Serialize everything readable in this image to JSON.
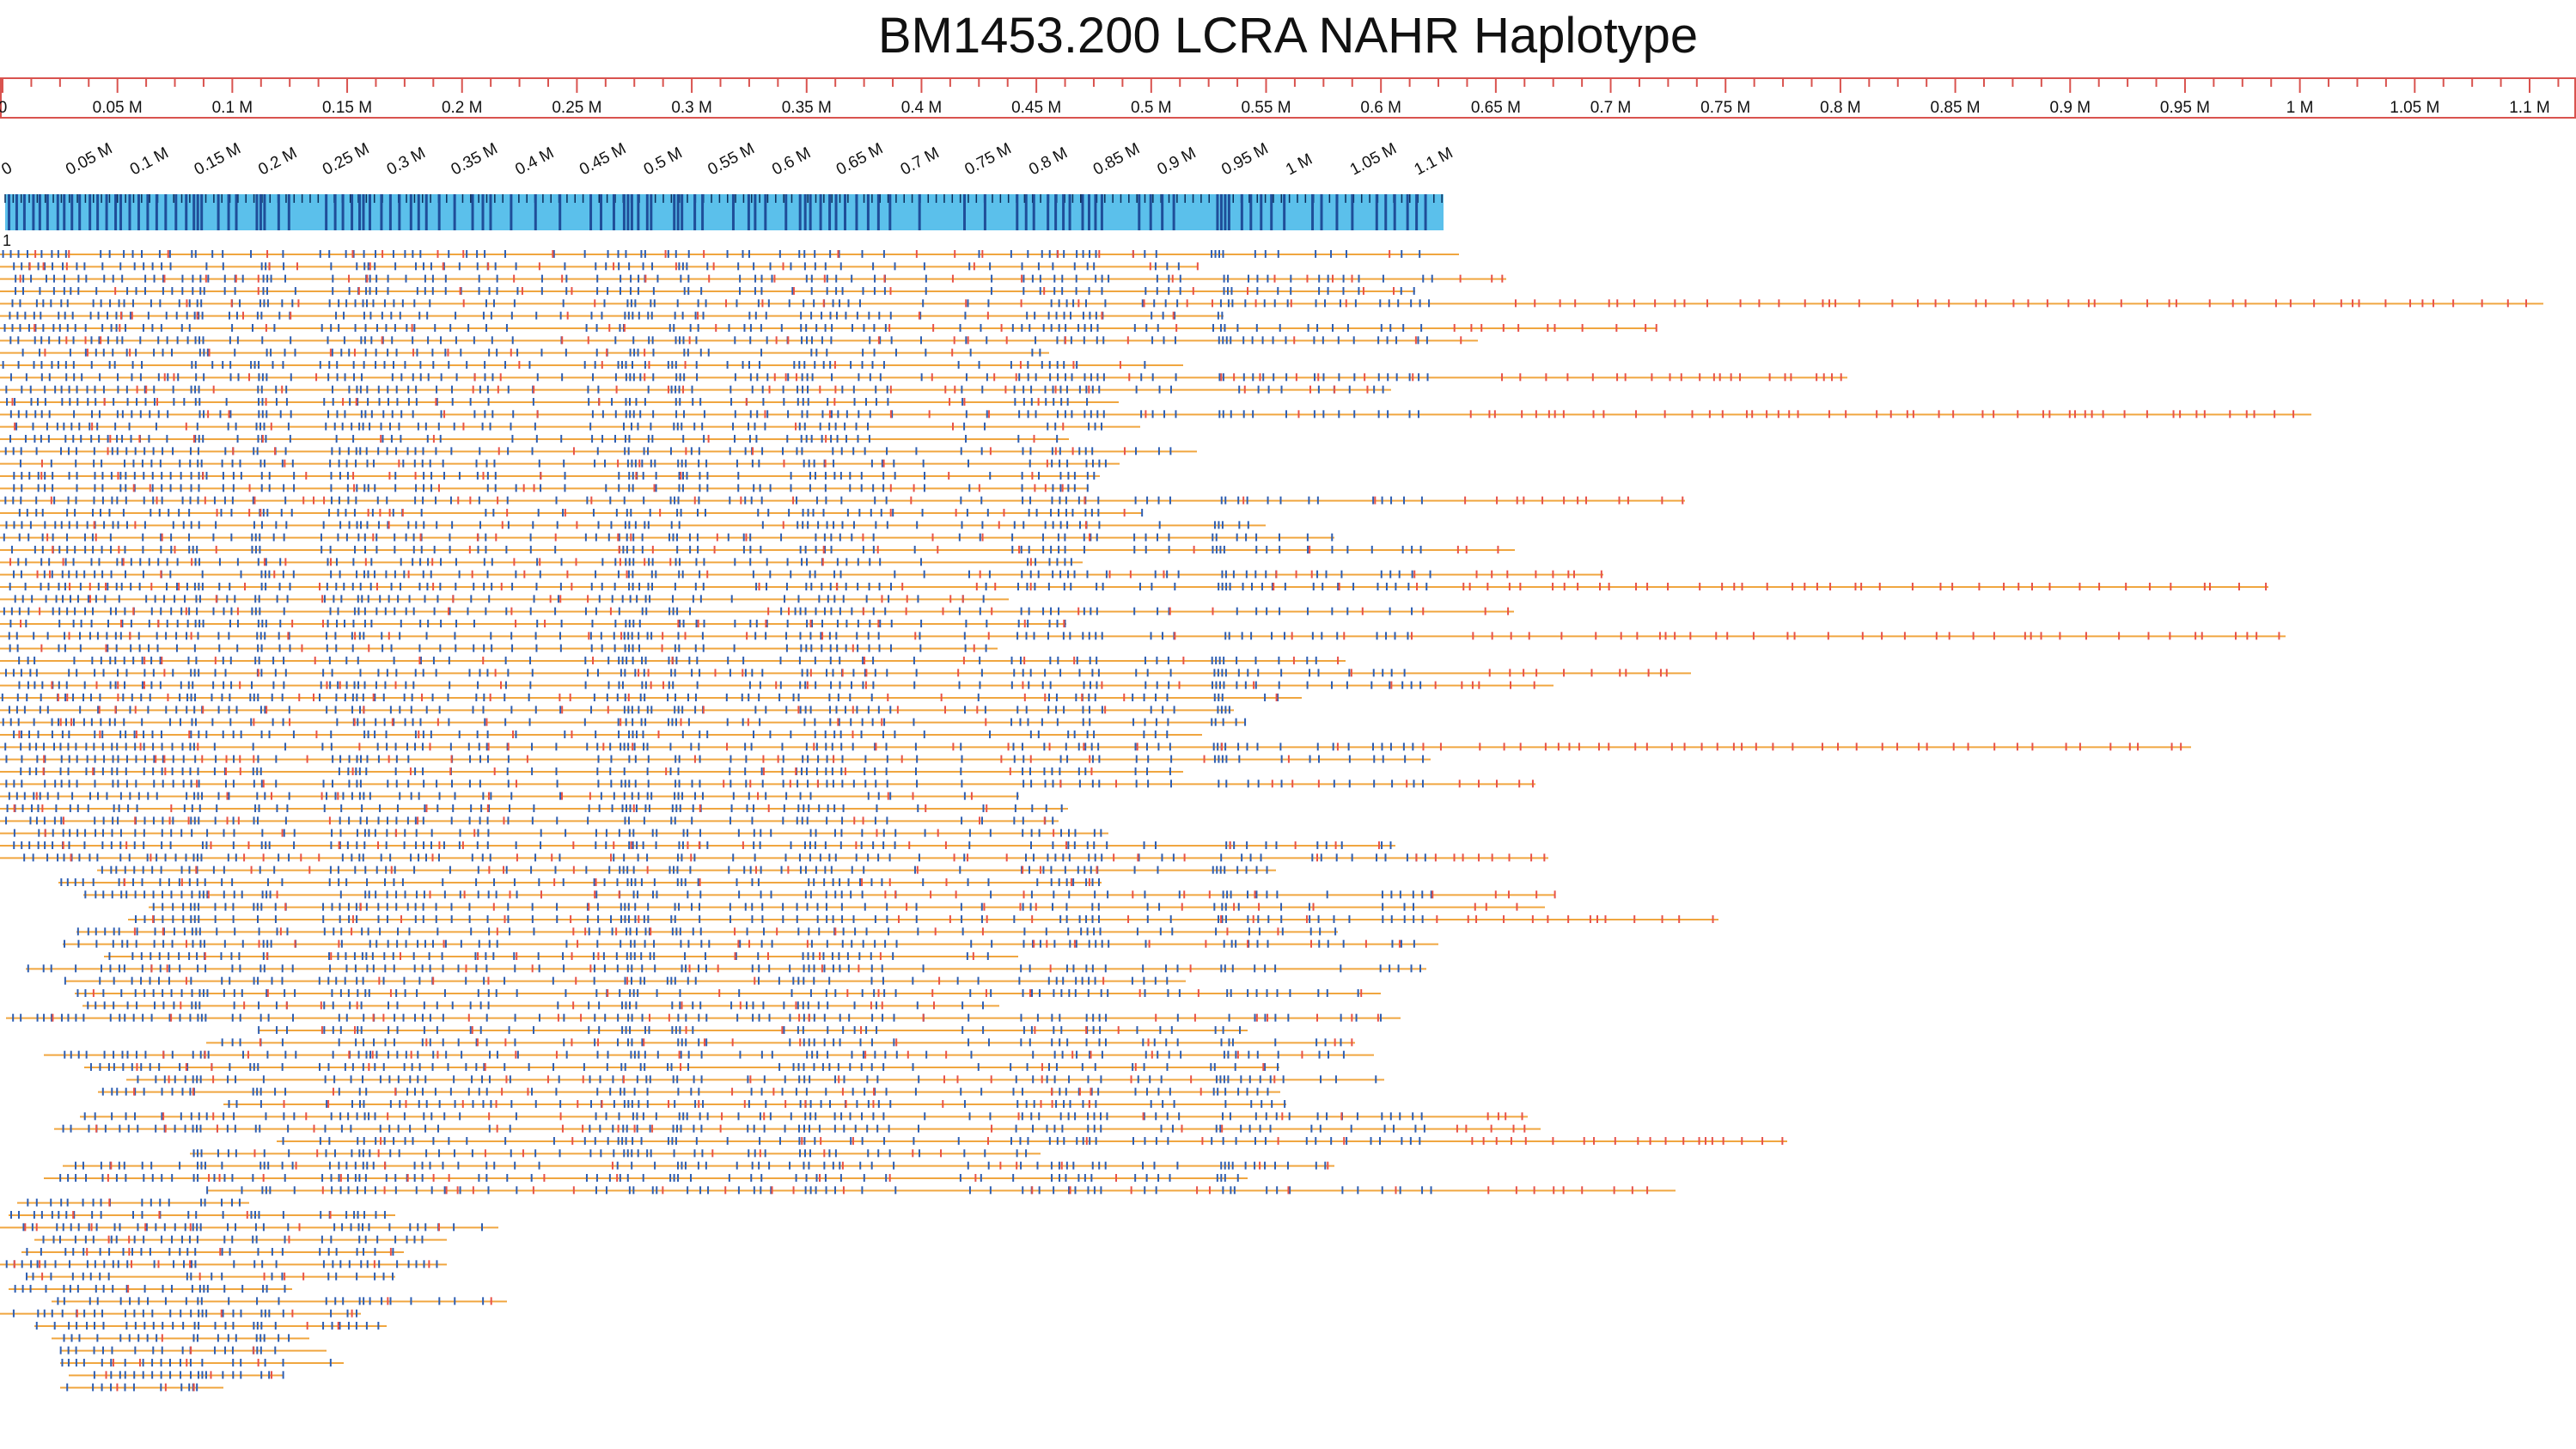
{
  "title": "BM1453.200 LCRA NAHR Haplotype",
  "colors": {
    "ruler": "#d9534f",
    "reference_fill": "#5bc0eb",
    "reference_site": "#1f4e99",
    "aligned_label": "#2f5fb3",
    "unaligned_label": "#e8534a",
    "molecule": "#f0a640",
    "text": "#111111"
  },
  "chart_data": {
    "type": "optical-map-alignment",
    "title": "BM1453.200 LCRA NAHR Haplotype",
    "top_axis": {
      "unit": "bp",
      "range": [
        0,
        1120000
      ],
      "tick_step": 50000,
      "tick_labels": [
        "0",
        "0.05 M",
        "0.1 M",
        "0.15 M",
        "0.2 M",
        "0.25 M",
        "0.3 M",
        "0.35 M",
        "0.4 M",
        "0.45 M",
        "0.5 M",
        "0.55 M",
        "0.6 M",
        "0.65 M",
        "0.7 M",
        "0.75 M",
        "0.8 M",
        "0.85 M",
        "0.9 M",
        "0.95 M",
        "1 M",
        "1.05 M",
        "1.1 M"
      ]
    },
    "contig_axis": {
      "unit": "bp",
      "range": [
        0,
        1120000
      ],
      "tick_step": 50000,
      "tick_labels": [
        "0",
        "0.05 M",
        "0.1 M",
        "0.15 M",
        "0.2 M",
        "0.25 M",
        "0.3 M",
        "0.35 M",
        "0.4 M",
        "0.45 M",
        "0.5 M",
        "0.55 M",
        "0.6 M",
        "0.65 M",
        "0.7 M",
        "0.75 M",
        "0.8 M",
        "0.85 M",
        "0.9 M",
        "0.95 M",
        "1 M",
        "1.05 M",
        "1.1 M"
      ]
    },
    "reference": {
      "label": "1",
      "start": 0,
      "end": 1120000,
      "label_sites": [
        3000,
        9000,
        15000,
        22000,
        27000,
        33000,
        41000,
        46000,
        52000,
        58000,
        66000,
        72000,
        79000,
        86000,
        90000,
        97000,
        104000,
        111000,
        118000,
        125000,
        133000,
        141000,
        147000,
        150000,
        153000,
        166000,
        174000,
        180000,
        196000,
        199000,
        202000,
        213000,
        221000,
        250000,
        257000,
        263000,
        270000,
        276000,
        279000,
        284000,
        293000,
        300000,
        307000,
        316000,
        322000,
        328000,
        338000,
        350000,
        364000,
        372000,
        378000,
        394000,
        413000,
        432000,
        456000,
        464000,
        474000,
        482000,
        485000,
        488000,
        493000,
        500000,
        503000,
        521000,
        524000,
        527000,
        537000,
        543000,
        567000,
        579000,
        584000,
        592000,
        608000,
        619000,
        623000,
        627000,
        635000,
        642000,
        647000,
        654000,
        663000,
        672000,
        680000,
        689000,
        712000,
        747000,
        763000,
        788000,
        795000,
        801000,
        812000,
        818000,
        824000,
        829000,
        839000,
        844000,
        849000,
        854000,
        883000,
        892000,
        901000,
        910000,
        944000,
        947000,
        950000,
        953000,
        963000,
        970000,
        978000,
        986000,
        996000,
        1018000,
        1025000,
        1037000,
        1049000,
        1068000,
        1075000,
        1082000,
        1092000,
        1099000,
        1106000
      ]
    },
    "molecules": {
      "count": 93,
      "aligned_label_color": "blue",
      "unaligned_label_color": "red",
      "length_range": [
        120000,
        1970000
      ]
    }
  }
}
